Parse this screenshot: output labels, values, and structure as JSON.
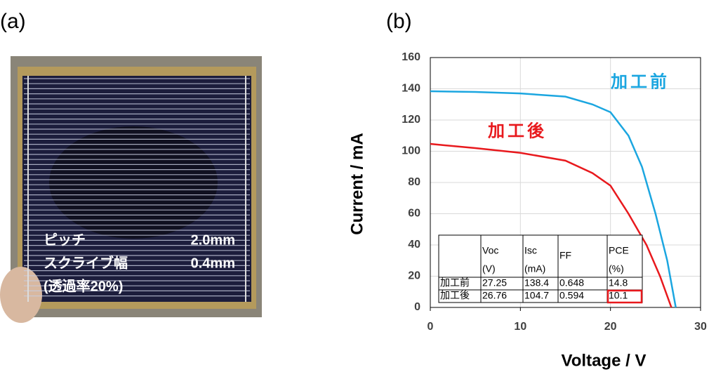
{
  "panels": {
    "a": "(a)",
    "b": "(b)"
  },
  "photo": {
    "labels": [
      {
        "name": "ピッチ",
        "value": "2.0mm"
      },
      {
        "name": "スクライブ幅",
        "value": "0.4mm"
      },
      {
        "name": "(透過率20%)"
      }
    ]
  },
  "chart_data": {
    "type": "line",
    "x_label": "Voltage / V",
    "y_label": "Current / mA",
    "xlim": [
      0,
      30
    ],
    "xticks": [
      0,
      10,
      20,
      30
    ],
    "ylim": [
      0,
      160
    ],
    "yticks": [
      0,
      20,
      40,
      60,
      80,
      100,
      120,
      140,
      160
    ],
    "grid": true,
    "series": [
      {
        "name": "加工前",
        "color": "#1ba6e0",
        "x": [
          0,
          5,
          10,
          15,
          18,
          20,
          22,
          23.5,
          25,
          26.3,
          27.25
        ],
        "values": [
          138.4,
          138,
          137,
          135,
          130,
          125,
          110,
          90,
          60,
          30,
          0
        ]
      },
      {
        "name": "加工後",
        "color": "#e8191d",
        "x": [
          0,
          5,
          10,
          15,
          18,
          20,
          22,
          24,
          25.5,
          26.76
        ],
        "values": [
          104.7,
          102,
          99,
          94,
          86,
          78,
          60,
          40,
          20,
          0
        ]
      }
    ],
    "table": {
      "header": [
        {
          "name": "Voc",
          "unit": "(V)"
        },
        {
          "name": "Isc",
          "unit": "(mA)"
        },
        {
          "name": "FF"
        },
        {
          "name": "PCE",
          "unit": "(%)"
        }
      ],
      "rows": [
        {
          "label": "加工前",
          "cells": [
            27.25,
            138.4,
            0.648,
            14.8
          ]
        },
        {
          "label": "加工後",
          "cells": [
            26.76,
            104.7,
            0.594,
            10.1
          ]
        }
      ],
      "highlight": {
        "row": 1,
        "col": 3,
        "color": "#e8191d"
      }
    }
  }
}
